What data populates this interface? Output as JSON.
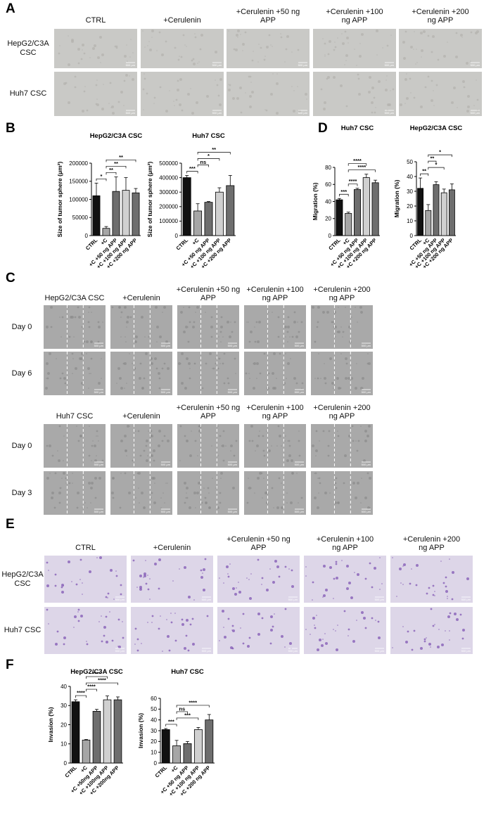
{
  "scale_bar": "500 μm",
  "panel_A": {
    "letter": "A",
    "columns": [
      "CTRL",
      "+Cerulenin",
      "+Cerulenin +50 ng APP",
      "+Cerulenin +100 ng APP",
      "+Cerulenin +200 ng APP"
    ],
    "rows": [
      "HepG2/C3A CSC",
      "Huh7 CSC"
    ]
  },
  "panel_B": {
    "letter": "B",
    "charts": [
      {
        "type": "bar",
        "title": "HepG2/C3A CSC",
        "y_label": "Size of tumor sphere (μm²)",
        "categories": [
          "CTRL",
          "+C",
          "+C +50 ng APP",
          "+C +100 ng APP",
          "+C +200 ng APP"
        ],
        "values": [
          110000,
          20000,
          122000,
          125000,
          118000
        ],
        "errors": [
          35000,
          5000,
          40000,
          35000,
          12000
        ],
        "colors": [
          "#111111",
          "#a6a6a6",
          "#6e6e6e",
          "#d0d0d0",
          "#6e6e6e"
        ],
        "ylim": [
          0,
          200000
        ],
        "yticks": [
          0,
          50000,
          100000,
          150000,
          200000
        ],
        "significance": [
          {
            "from": "CTRL",
            "to": "+C",
            "label": "*"
          },
          {
            "from": "+C",
            "to": "+C +50 ng APP",
            "label": "**"
          },
          {
            "from": "+C",
            "to": "+C +100 ng APP",
            "label": "**"
          },
          {
            "from": "+C",
            "to": "+C +200 ng APP",
            "label": "**"
          }
        ]
      },
      {
        "type": "bar",
        "title": "Huh7 CSC",
        "y_label": "Size of tumor sphere (μm²)",
        "categories": [
          "CTRL",
          "+C",
          "+C +50 ng APP",
          "+C +100 ng APP",
          "+C +200 ng APP"
        ],
        "values": [
          400000,
          170000,
          230000,
          300000,
          345000
        ],
        "errors": [
          15000,
          50000,
          5000,
          30000,
          70000
        ],
        "colors": [
          "#111111",
          "#a6a6a6",
          "#6e6e6e",
          "#d0d0d0",
          "#6e6e6e"
        ],
        "ylim": [
          0,
          500000
        ],
        "yticks": [
          0,
          100000,
          200000,
          300000,
          400000,
          500000
        ],
        "significance": [
          {
            "from": "CTRL",
            "to": "+C",
            "label": "***"
          },
          {
            "from": "+C",
            "to": "+C +50 ng APP",
            "label": "ns"
          },
          {
            "from": "+C",
            "to": "+C +100 ng APP",
            "label": "*"
          },
          {
            "from": "+C",
            "to": "+C +200 ng APP",
            "label": "**"
          }
        ]
      }
    ]
  },
  "panel_C": {
    "letter": "C",
    "columns": [
      "+Cerulenin",
      "+Cerulenin +50 ng APP",
      "+Cerulenin +100 ng APP",
      "+Cerulenin +200 ng APP"
    ],
    "groups": [
      {
        "title": "HepG2/C3A CSC",
        "rows": [
          "Day 0",
          "Day 6"
        ]
      },
      {
        "title": "Huh7 CSC",
        "rows": [
          "Day 0",
          "Day 3"
        ]
      }
    ]
  },
  "panel_D": {
    "letter": "D",
    "charts": [
      {
        "type": "bar",
        "title": "Huh7 CSC",
        "y_label": "Migration (%)",
        "categories": [
          "CTRL",
          "+C",
          "+C +50 ng APP",
          "+C +100 ng APP",
          "+C +200 ng APP"
        ],
        "values": [
          42,
          26,
          54,
          68,
          62
        ],
        "errors": [
          1.5,
          1.5,
          1.5,
          4,
          3
        ],
        "colors": [
          "#111111",
          "#a6a6a6",
          "#6e6e6e",
          "#d0d0d0",
          "#6e6e6e"
        ],
        "ylim": [
          0,
          80
        ],
        "yticks": [
          0,
          20,
          40,
          60,
          80
        ],
        "significance": [
          {
            "from": "CTRL",
            "to": "+C",
            "label": "***"
          },
          {
            "from": "+C",
            "to": "+C +50 ng APP",
            "label": "****"
          },
          {
            "from": "+C",
            "to": "+C +200 ng APP",
            "label": "****"
          },
          {
            "from": "+C",
            "to": "+C +100 ng APP",
            "label": "****"
          }
        ]
      },
      {
        "type": "bar",
        "title": "HepG2/C3A CSC",
        "y_label": "Migration (%)",
        "categories": [
          "CTRL",
          "+C",
          "+C +50 ng APP",
          "+C +100 ng APP",
          "+C +200 ng APP"
        ],
        "values": [
          32,
          17,
          34.5,
          29,
          31
        ],
        "errors": [
          7,
          4,
          2,
          2.5,
          4
        ],
        "colors": [
          "#111111",
          "#a6a6a6",
          "#6e6e6e",
          "#d0d0d0",
          "#6e6e6e"
        ],
        "ylim": [
          0,
          50
        ],
        "yticks": [
          0,
          10,
          20,
          30,
          40,
          50
        ],
        "significance": [
          {
            "from": "CTRL",
            "to": "+C",
            "label": "**"
          },
          {
            "from": "+C",
            "to": "+C +100 ng APP",
            "label": "*"
          },
          {
            "from": "+C",
            "to": "+C +50 ng APP",
            "label": "**"
          },
          {
            "from": "+C",
            "to": "+C +200 ng APP",
            "label": "*"
          }
        ]
      }
    ]
  },
  "panel_E": {
    "letter": "E",
    "columns": [
      "CTRL",
      "+Cerulenin",
      "+Cerulenin +50 ng APP",
      "+Cerulenin +100 ng APP",
      "+Cerulenin +200 ng APP"
    ],
    "rows": [
      "HepG2/C3A CSC",
      "Huh7 CSC"
    ]
  },
  "panel_F": {
    "letter": "F",
    "charts": [
      {
        "type": "bar",
        "title": "HepG2/C3A CSC",
        "y_label": "Invasion (%)",
        "categories": [
          "CTRL",
          "+C",
          "+C +50ng APP",
          "+C +100ng APP",
          "+C +200ng APP"
        ],
        "values": [
          32,
          12,
          27,
          33,
          33
        ],
        "errors": [
          1,
          0.3,
          1,
          2,
          1.5
        ],
        "colors": [
          "#111111",
          "#a6a6a6",
          "#6e6e6e",
          "#d0d0d0",
          "#6e6e6e"
        ],
        "ylim": [
          0,
          40
        ],
        "yticks": [
          0,
          10,
          20,
          30,
          40
        ],
        "significance": [
          {
            "from": "CTRL",
            "to": "+C",
            "label": "****"
          },
          {
            "from": "+C",
            "to": "+C +50ng APP",
            "label": "****"
          },
          {
            "from": "+C",
            "to": "+C +200ng APP",
            "label": "****"
          },
          {
            "from": "+C",
            "to": "+C +100ng APP",
            "label": "****"
          }
        ]
      },
      {
        "type": "bar",
        "title": "Huh7 CSC",
        "y_label": "Invasion (%)",
        "categories": [
          "CTRL",
          "+C",
          "+C +50 ng APP",
          "+C +100 ng APP",
          "+C +200 ng APP"
        ],
        "values": [
          31,
          16,
          18,
          31,
          40
        ],
        "errors": [
          1,
          5,
          2,
          2,
          5
        ],
        "colors": [
          "#111111",
          "#a6a6a6",
          "#6e6e6e",
          "#d0d0d0",
          "#6e6e6e"
        ],
        "ylim": [
          0,
          60
        ],
        "yticks": [
          0,
          10,
          20,
          30,
          40,
          50,
          60
        ],
        "significance": [
          {
            "from": "CTRL",
            "to": "+C",
            "label": "***"
          },
          {
            "from": "+C",
            "to": "+C +100 ng APP",
            "label": "***"
          },
          {
            "from": "+C",
            "to": "+C +50 ng APP",
            "label": "ns"
          },
          {
            "from": "+C",
            "to": "+C +200 ng APP",
            "label": "****"
          }
        ]
      }
    ]
  }
}
